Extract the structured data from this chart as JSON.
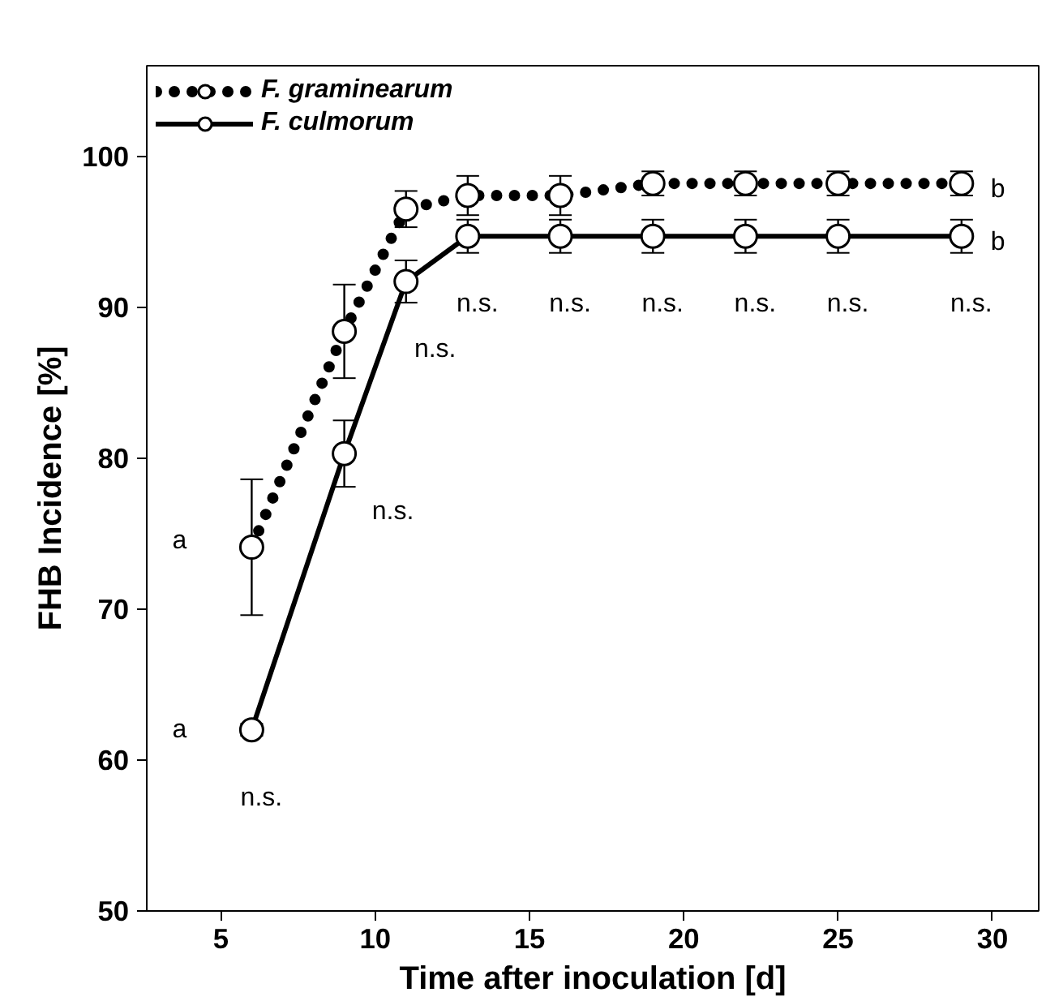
{
  "chart_data": {
    "type": "line",
    "xlabel": "Time after inoculation [d]",
    "ylabel": "FHB Incidence [%]",
    "xlim": [
      2.6,
      31.5
    ],
    "ylim": [
      50,
      106
    ],
    "xticks": [
      5,
      10,
      15,
      20,
      25,
      30
    ],
    "yticks": [
      50,
      60,
      70,
      80,
      90,
      100
    ],
    "grid": false,
    "legend": "top left",
    "marker": "circle",
    "series": [
      {
        "name": "F. graminearum",
        "color": "#000000",
        "line_style": "dotted",
        "x": [
          6,
          9,
          11,
          13,
          16,
          19,
          22,
          25,
          29
        ],
        "values": [
          74.1,
          88.4,
          96.5,
          97.4,
          97.4,
          98.2,
          98.2,
          98.2,
          98.2
        ],
        "errors": [
          4.5,
          3.1,
          1.2,
          1.3,
          1.3,
          0.8,
          0.8,
          0.8,
          0.8
        ]
      },
      {
        "name": "F. culmorum",
        "color": "#000000",
        "line_style": "solid",
        "x": [
          6,
          9,
          11,
          13,
          16,
          19,
          22,
          25,
          29
        ],
        "values": [
          62,
          80.3,
          91.7,
          94.7,
          94.7,
          94.7,
          94.7,
          94.7,
          94.7
        ],
        "errors": [
          0.4,
          2.2,
          1.4,
          1.1,
          1.1,
          1.1,
          1.1,
          1.1,
          1.1
        ]
      }
    ],
    "annotations": [
      {
        "text": "a",
        "x": 6,
        "y": 74.1
      },
      {
        "text": "a",
        "x": 6,
        "y": 62
      },
      {
        "text": "b",
        "x": 29,
        "y": 98.2
      },
      {
        "text": "b",
        "x": 29,
        "y": 94.7
      },
      {
        "text": "n.s.",
        "x": 6,
        "y": 62
      },
      {
        "text": "n.s.",
        "x": 9,
        "y": 80.3
      },
      {
        "text": "n.s.",
        "x": 11,
        "y": 91.7
      },
      {
        "text": "n.s.",
        "x": 13,
        "y": 94.7
      },
      {
        "text": "n.s.",
        "x": 16,
        "y": 94.7
      },
      {
        "text": "n.s.",
        "x": 19,
        "y": 94.7
      },
      {
        "text": "n.s.",
        "x": 22,
        "y": 94.7
      },
      {
        "text": "n.s.",
        "x": 25,
        "y": 94.7
      },
      {
        "text": "n.s.",
        "x": 29,
        "y": 94.7
      }
    ]
  }
}
